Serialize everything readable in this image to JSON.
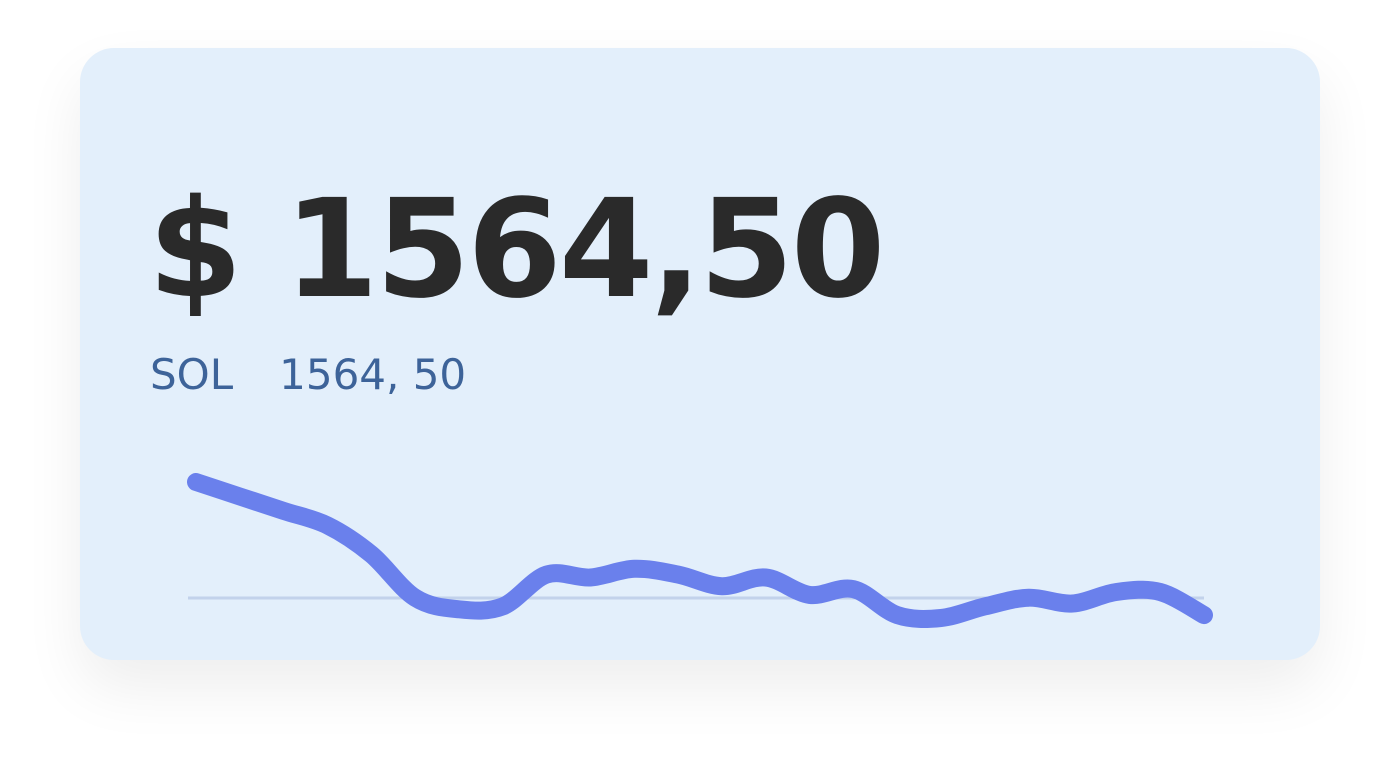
{
  "balance": {
    "price": "$ 1564,50",
    "currency": "SOL",
    "amount": "1564, 50"
  },
  "colors": {
    "card_background": "#e3effb",
    "price_text": "#2a2a2a",
    "sub_text": "#3d6399",
    "line": "#6a80ec",
    "baseline": "#c2d2eb"
  },
  "chart_data": {
    "type": "line",
    "title": "",
    "xlabel": "",
    "ylabel": "",
    "grid": false,
    "y": [
      100,
      95,
      90,
      85,
      75,
      60,
      56,
      57,
      68,
      67,
      70,
      68,
      64,
      67,
      61,
      63,
      54,
      53,
      57,
      60,
      58,
      62,
      62,
      54
    ]
  }
}
